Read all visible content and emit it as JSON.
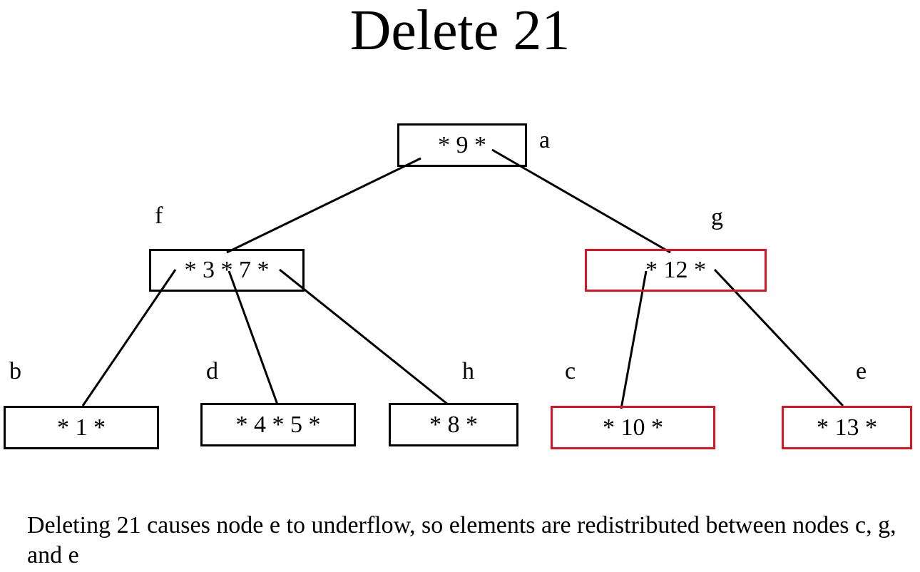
{
  "title": "Delete 21",
  "colors": {
    "node_border": "#000000",
    "highlight_border": "#e0141e",
    "edge": "#000000"
  },
  "nodes": {
    "a": {
      "label": "a",
      "content": "* 9 *",
      "highlighted": false
    },
    "f": {
      "label": "f",
      "content": "* 3 * 7 *",
      "highlighted": false
    },
    "g": {
      "label": "g",
      "content": "* 12 *",
      "highlighted": true
    },
    "b": {
      "label": "b",
      "content": "* 1 *",
      "highlighted": false
    },
    "d": {
      "label": "d",
      "content": "* 4 * 5 *",
      "highlighted": false
    },
    "h": {
      "label": "h",
      "content": "* 8 *",
      "highlighted": false
    },
    "c": {
      "label": "c",
      "content": "* 10 *",
      "highlighted": true
    },
    "e": {
      "label": "e",
      "content": "* 13 *",
      "highlighted": true
    }
  },
  "edges": [
    [
      "a",
      "f"
    ],
    [
      "a",
      "g"
    ],
    [
      "f",
      "b"
    ],
    [
      "f",
      "d"
    ],
    [
      "f",
      "h"
    ],
    [
      "g",
      "c"
    ],
    [
      "g",
      "e"
    ]
  ],
  "caption": "Deleting 21 causes node e to underflow, so elements are redistributed between nodes c, g, and e"
}
